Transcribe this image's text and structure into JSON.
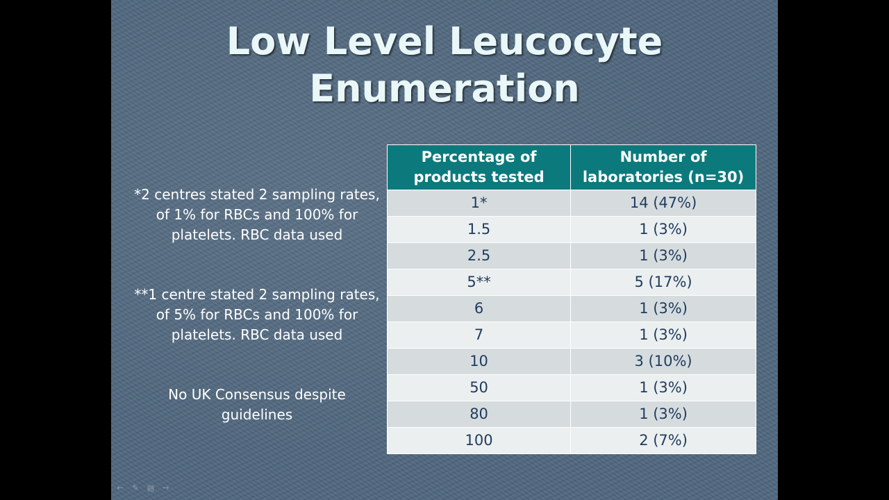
{
  "title": {
    "line1": "Low Level Leucocyte",
    "line2": "Enumeration"
  },
  "notes": [
    "*2 centres stated 2 sampling rates, of 1% for RBCs and 100% for platelets. RBC data used",
    "**1 centre stated 2 sampling rates, of 5% for RBCs and 100% for platelets. RBC data used",
    "No UK Consensus despite guidelines"
  ],
  "table": {
    "headers": [
      "Percentage of products tested",
      "Number of laboratories (n=30)"
    ],
    "rows": [
      [
        "1*",
        "14 (47%)"
      ],
      [
        "1.5",
        "1 (3%)"
      ],
      [
        "2.5",
        "1 (3%)"
      ],
      [
        "5**",
        "5 (17%)"
      ],
      [
        "6",
        "1 (3%)"
      ],
      [
        "7",
        "1 (3%)"
      ],
      [
        "10",
        "3 (10%)"
      ],
      [
        "50",
        "1 (3%)"
      ],
      [
        "80",
        "1 (3%)"
      ],
      [
        "100",
        "2 (7%)"
      ]
    ]
  },
  "colors": {
    "background": "#51687f",
    "title": "#eaf7f8",
    "header": "#0c7a7c",
    "row_odd": "#d6dcde",
    "row_even": "#ebefef",
    "cell_text": "#1f3b5e"
  },
  "nav_icons": [
    "back-arrow-icon",
    "pen-icon",
    "menu-icon",
    "forward-arrow-icon"
  ]
}
